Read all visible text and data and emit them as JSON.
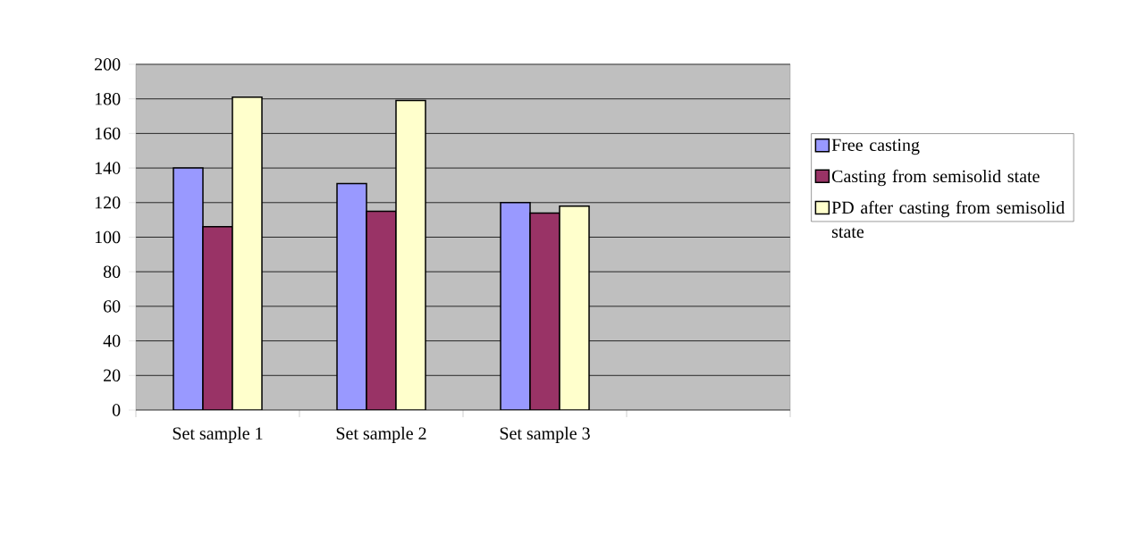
{
  "chart_data": {
    "type": "bar",
    "categories": [
      "Set sample 1",
      "Set sample 2",
      "Set sample 3",
      null
    ],
    "series": [
      {
        "name": "Free casting",
        "color": "#9999ff",
        "values": [
          140,
          131,
          120,
          null
        ]
      },
      {
        "name": "Casting from semisolid state",
        "color": "#993366",
        "values": [
          106,
          115,
          114,
          null
        ]
      },
      {
        "name": "PD after casting from semisolid state",
        "color": "#ffffcc",
        "values": [
          181,
          179,
          118,
          null
        ]
      }
    ],
    "ylim": [
      0,
      200
    ],
    "yticks": [
      0,
      20,
      40,
      60,
      80,
      100,
      120,
      140,
      160,
      180,
      200
    ],
    "grid": "y",
    "legend": "right"
  }
}
